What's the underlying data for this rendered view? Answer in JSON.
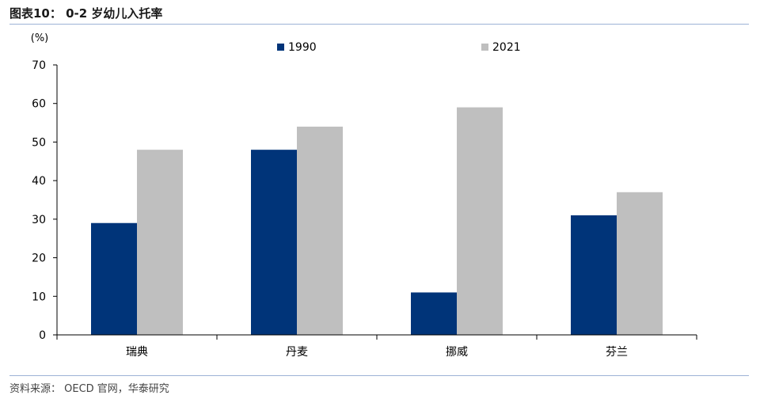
{
  "header": {
    "title": "图表10： 0-2 岁幼儿入托率"
  },
  "footer": {
    "source": "资料来源： OECD 官网，华泰研究"
  },
  "colors": {
    "series_1990": "#003479",
    "series_2021": "#bfbfbf",
    "rule": "#9db3d6"
  },
  "chart_data": {
    "type": "bar",
    "ylabel": "(%)",
    "ylim": [
      0,
      70
    ],
    "yticks": [
      0,
      10,
      20,
      30,
      40,
      50,
      60,
      70
    ],
    "grid": false,
    "legend_position": "top-center",
    "categories": [
      "瑞典",
      "丹麦",
      "挪威",
      "芬兰"
    ],
    "series": [
      {
        "name": "1990",
        "values": [
          29,
          48,
          11,
          31
        ]
      },
      {
        "name": "2021",
        "values": [
          48,
          54,
          59,
          37
        ]
      }
    ]
  }
}
